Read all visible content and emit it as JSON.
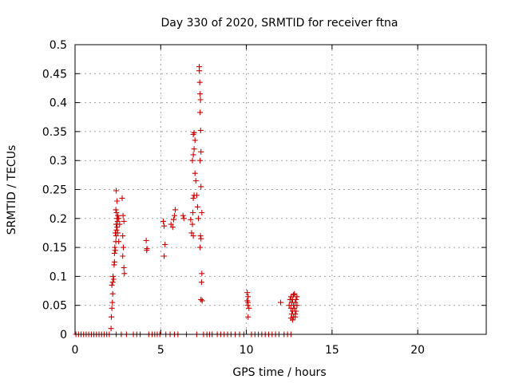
{
  "chart_data": {
    "type": "scatter",
    "title": "Day 330 of 2020, SRMTID for receiver ftna",
    "xlabel": "GPS time / hours",
    "ylabel": "SRMTID / TECUs",
    "xlim": [
      0,
      24
    ],
    "ylim": [
      0,
      0.5
    ],
    "x_ticks": [
      0,
      5,
      10,
      15,
      20
    ],
    "x_tick_labels": [
      "0",
      "5",
      "10",
      "15",
      "20"
    ],
    "y_ticks": [
      0,
      0.05,
      0.1,
      0.15,
      0.2,
      0.25,
      0.3,
      0.35,
      0.4,
      0.45,
      0.5
    ],
    "y_tick_labels": [
      "0",
      "0.05",
      "0.1",
      "0.15",
      "0.2",
      "0.25",
      "0.3",
      "0.35",
      "0.4",
      "0.45",
      "0.5"
    ],
    "grid": true,
    "marker": "+",
    "color": "#cc0000",
    "series": [
      {
        "name": "",
        "points": [
          [
            0.05,
            0
          ],
          [
            0.2,
            0
          ],
          [
            0.35,
            0
          ],
          [
            0.5,
            0
          ],
          [
            0.65,
            0
          ],
          [
            0.8,
            0
          ],
          [
            0.95,
            0
          ],
          [
            1.1,
            0
          ],
          [
            1.25,
            0
          ],
          [
            1.4,
            0
          ],
          [
            1.55,
            0
          ],
          [
            1.7,
            0
          ],
          [
            1.85,
            0
          ],
          [
            2.0,
            0
          ],
          [
            2.1,
            0.01
          ],
          [
            2.12,
            0.03
          ],
          [
            2.15,
            0.045
          ],
          [
            2.18,
            0.055
          ],
          [
            2.2,
            0.07
          ],
          [
            2.15,
            0.085
          ],
          [
            2.2,
            0.09
          ],
          [
            2.25,
            0.095
          ],
          [
            2.22,
            0.1
          ],
          [
            2.28,
            0.12
          ],
          [
            2.3,
            0.125
          ],
          [
            2.3,
            0.14
          ],
          [
            2.35,
            0.145
          ],
          [
            2.32,
            0.15
          ],
          [
            2.38,
            0.16
          ],
          [
            2.4,
            0.17
          ],
          [
            2.35,
            0.175
          ],
          [
            2.42,
            0.18
          ],
          [
            2.45,
            0.185
          ],
          [
            2.4,
            0.19
          ],
          [
            2.48,
            0.195
          ],
          [
            2.45,
            0.2
          ],
          [
            2.5,
            0.205
          ],
          [
            2.42,
            0.21
          ],
          [
            2.38,
            0.215
          ],
          [
            2.45,
            0.23
          ],
          [
            2.4,
            0.248
          ],
          [
            2.55,
            0.16
          ],
          [
            2.5,
            0.175
          ],
          [
            2.6,
            0.19
          ],
          [
            2.55,
            0.2
          ],
          [
            2.4,
            0
          ],
          [
            2.7,
            0
          ],
          [
            2.75,
            0.235
          ],
          [
            2.8,
            0.205
          ],
          [
            2.85,
            0.195
          ],
          [
            2.78,
            0.17
          ],
          [
            2.82,
            0.15
          ],
          [
            2.78,
            0.135
          ],
          [
            2.85,
            0.115
          ],
          [
            2.88,
            0.105
          ],
          [
            3.0,
            0
          ],
          [
            3.4,
            0
          ],
          [
            3.6,
            0
          ],
          [
            3.8,
            0
          ],
          [
            4.15,
            0.162
          ],
          [
            4.2,
            0.148
          ],
          [
            4.18,
            0.145
          ],
          [
            4.3,
            0
          ],
          [
            4.5,
            0
          ],
          [
            4.65,
            0
          ],
          [
            4.8,
            0
          ],
          [
            4.95,
            0
          ],
          [
            5.15,
            0.195
          ],
          [
            5.2,
            0.187
          ],
          [
            5.25,
            0.155
          ],
          [
            5.2,
            0.135
          ],
          [
            5.3,
            0
          ],
          [
            5.6,
            0.19
          ],
          [
            5.7,
            0.185
          ],
          [
            5.75,
            0.198
          ],
          [
            5.8,
            0.205
          ],
          [
            5.85,
            0.215
          ],
          [
            5.55,
            0
          ],
          [
            5.8,
            0
          ],
          [
            6.0,
            0
          ],
          [
            6.3,
            0.205
          ],
          [
            6.35,
            0.2
          ],
          [
            6.5,
            0
          ],
          [
            6.85,
            0.19
          ],
          [
            6.8,
            0.175
          ],
          [
            6.9,
            0.17
          ],
          [
            6.75,
            0.198
          ],
          [
            6.88,
            0.21
          ],
          [
            6.9,
            0.235
          ],
          [
            6.95,
            0.24
          ],
          [
            6.85,
            0.3
          ],
          [
            6.9,
            0.31
          ],
          [
            6.95,
            0.32
          ],
          [
            7.0,
            0.335
          ],
          [
            6.9,
            0.345
          ],
          [
            6.95,
            0.348
          ],
          [
            7.0,
            0.278
          ],
          [
            7.05,
            0.265
          ],
          [
            7.1,
            0.24
          ],
          [
            7.15,
            0.22
          ],
          [
            7.2,
            0.2
          ],
          [
            7.25,
            0.462
          ],
          [
            7.25,
            0.455
          ],
          [
            7.28,
            0.435
          ],
          [
            7.3,
            0.415
          ],
          [
            7.32,
            0.405
          ],
          [
            7.3,
            0.383
          ],
          [
            7.33,
            0.352
          ],
          [
            7.35,
            0.315
          ],
          [
            7.3,
            0.3
          ],
          [
            7.35,
            0.255
          ],
          [
            7.4,
            0.21
          ],
          [
            7.32,
            0.17
          ],
          [
            7.3,
            0.15
          ],
          [
            7.35,
            0.165
          ],
          [
            7.4,
            0.105
          ],
          [
            7.38,
            0.09
          ],
          [
            7.42,
            0.058
          ],
          [
            7.35,
            0.06
          ],
          [
            7.1,
            0
          ],
          [
            7.5,
            0
          ],
          [
            7.7,
            0
          ],
          [
            7.85,
            0
          ],
          [
            8.0,
            0
          ],
          [
            8.3,
            0
          ],
          [
            8.5,
            0
          ],
          [
            8.7,
            0
          ],
          [
            8.9,
            0
          ],
          [
            9.1,
            0
          ],
          [
            9.35,
            0
          ],
          [
            9.6,
            0
          ],
          [
            9.85,
            0
          ],
          [
            10.05,
            0.072
          ],
          [
            10.1,
            0.065
          ],
          [
            10.05,
            0.058
          ],
          [
            10.1,
            0.055
          ],
          [
            10.08,
            0.05
          ],
          [
            10.15,
            0.045
          ],
          [
            10.1,
            0.03
          ],
          [
            10.3,
            0
          ],
          [
            10.5,
            0
          ],
          [
            10.7,
            0
          ],
          [
            10.9,
            0
          ],
          [
            11.1,
            0
          ],
          [
            11.3,
            0
          ],
          [
            11.5,
            0
          ],
          [
            11.7,
            0
          ],
          [
            11.9,
            0
          ],
          [
            12.0,
            0.055
          ],
          [
            12.2,
            0
          ],
          [
            12.4,
            0
          ],
          [
            12.6,
            0
          ],
          [
            12.5,
            0.05
          ],
          [
            12.55,
            0.06
          ],
          [
            12.6,
            0.045
          ],
          [
            12.6,
            0.065
          ],
          [
            12.65,
            0.035
          ],
          [
            12.65,
            0.055
          ],
          [
            12.7,
            0.04
          ],
          [
            12.7,
            0.06
          ],
          [
            12.75,
            0.03
          ],
          [
            12.75,
            0.05
          ],
          [
            12.8,
            0.07
          ],
          [
            12.8,
            0.045
          ],
          [
            12.85,
            0.055
          ],
          [
            12.85,
            0.035
          ],
          [
            12.9,
            0.06
          ],
          [
            12.9,
            0.04
          ],
          [
            12.95,
            0.05
          ],
          [
            12.95,
            0.065
          ],
          [
            12.6,
            0.028
          ],
          [
            12.7,
            0.025
          ],
          [
            12.85,
            0.03
          ],
          [
            12.75,
            0.068
          ]
        ]
      }
    ]
  }
}
